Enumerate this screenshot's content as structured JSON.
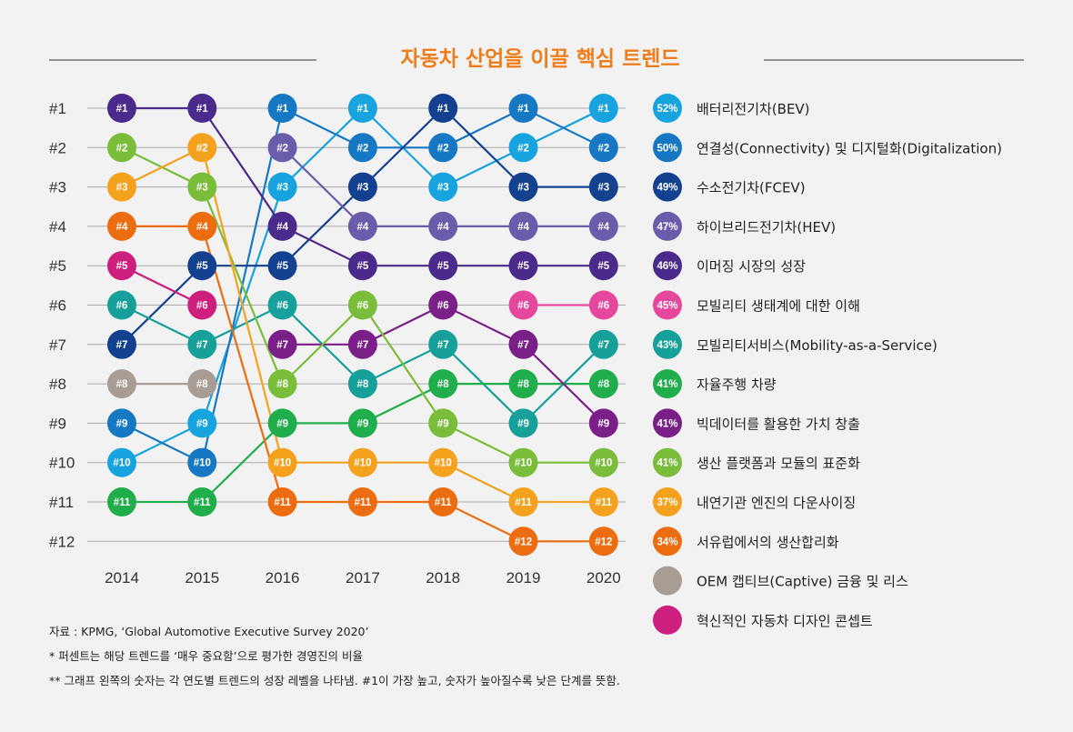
{
  "title": "자동차 산업을 이끌 핵심 트렌드",
  "chart_data": {
    "type": "line",
    "years": [
      "2014",
      "2015",
      "2016",
      "2017",
      "2018",
      "2019",
      "2020"
    ],
    "rank_labels": [
      "#1",
      "#2",
      "#3",
      "#4",
      "#5",
      "#6",
      "#7",
      "#8",
      "#9",
      "#10",
      "#11",
      "#12"
    ],
    "series": [
      {
        "name": "배터리전기차(BEV)",
        "pct": "52%",
        "color": "#17a3de",
        "ranks": [
          10,
          9,
          3,
          1,
          3,
          2,
          1
        ]
      },
      {
        "name": "연결성(Connectivity) 및 디지털화(Digitalization)",
        "pct": "50%",
        "color": "#1678c2",
        "ranks": [
          9,
          10,
          1,
          2,
          2,
          1,
          2
        ]
      },
      {
        "name": "수소전기차(FCEV)",
        "pct": "49%",
        "color": "#14418f",
        "ranks": [
          7,
          5,
          5,
          3,
          1,
          3,
          3
        ]
      },
      {
        "name": "하이브리드전기차(HEV)",
        "pct": "47%",
        "color": "#6a5bab",
        "ranks": [
          null,
          null,
          2,
          4,
          4,
          4,
          4
        ]
      },
      {
        "name": "이머징 시장의 성장",
        "pct": "46%",
        "color": "#4a2a8a",
        "ranks": [
          1,
          1,
          4,
          5,
          5,
          5,
          5
        ]
      },
      {
        "name": "모빌리티 생태계에 대한 이해",
        "pct": "45%",
        "color": "#e5479d",
        "ranks": [
          null,
          null,
          null,
          null,
          null,
          6,
          6
        ]
      },
      {
        "name": "모빌리티서비스(Mobility-as-a-Service)",
        "pct": "43%",
        "color": "#17a09a",
        "ranks": [
          6,
          7,
          6,
          8,
          7,
          9,
          7
        ]
      },
      {
        "name": "자율주행 차량",
        "pct": "41%",
        "color": "#1fae4b",
        "ranks": [
          11,
          11,
          9,
          9,
          8,
          8,
          8
        ]
      },
      {
        "name": "빅데이터를 활용한 가치 창출",
        "pct": "41%",
        "color": "#7a1f88",
        "ranks": [
          null,
          null,
          7,
          7,
          6,
          7,
          9
        ]
      },
      {
        "name": "생산 플랫폼과 모듈의 표준화",
        "pct": "41%",
        "color": "#79bd3b",
        "ranks": [
          2,
          3,
          8,
          6,
          9,
          10,
          10
        ]
      },
      {
        "name": "내연기관 엔진의 다운사이징",
        "pct": "37%",
        "color": "#f4a21e",
        "ranks": [
          3,
          2,
          10,
          10,
          10,
          11,
          11
        ]
      },
      {
        "name": "서유럽에서의 생산합리화",
        "pct": "34%",
        "color": "#ec6d0f",
        "ranks": [
          4,
          4,
          11,
          11,
          11,
          12,
          12
        ]
      },
      {
        "name": "OEM 캡티브(Captive) 금융 및 리스",
        "pct": "",
        "color": "#a89d94",
        "ranks": [
          8,
          8,
          null,
          null,
          null,
          null,
          null
        ]
      },
      {
        "name": "혁신적인 자동차 디자인 콘셉트",
        "pct": "",
        "color": "#cc1f7e",
        "ranks": [
          5,
          6,
          null,
          null,
          null,
          null,
          null
        ]
      }
    ]
  },
  "notes": [
    "자료 : KPMG, ‘Global Automotive Executive Survey 2020’",
    "* 퍼센트는 해당 트렌드를 ‘매우 중요함’으로 평가한 경영진의 비율",
    "** 그래프 왼쪽의 숫자는 각 연도별 트렌드의 성장 레벨을 나타냄. #1이 가장 높고, 숫자가 높아질수록  낮은 단계를 뜻함."
  ]
}
